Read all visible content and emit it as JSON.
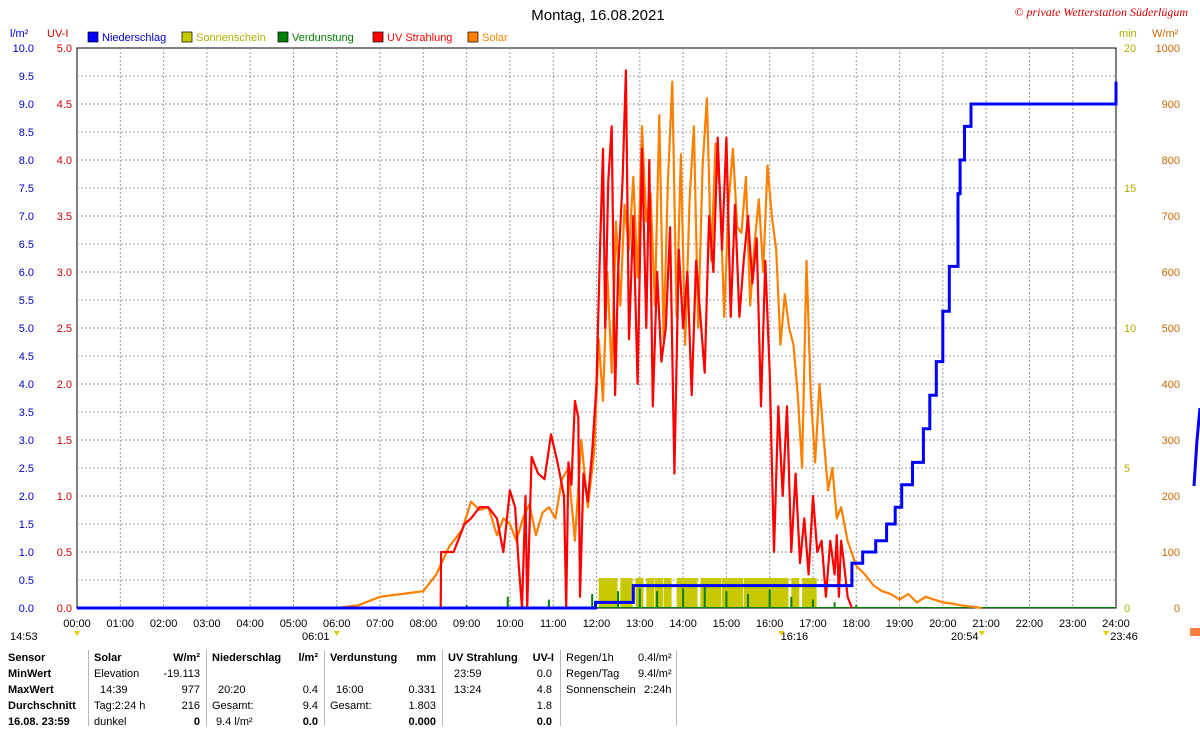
{
  "chart_data": {
    "type": "line",
    "title": "Montag, 16.08.2021",
    "copyright": "© private Wetterstation Süderlügum",
    "units": {
      "left_outer": "l/m²",
      "left_inner": "UV-I",
      "right_inner": "min",
      "right_outer": "W/m²"
    },
    "legend": [
      {
        "name": "Niederschlag",
        "color": "#0000ff"
      },
      {
        "name": "Sonnenschein",
        "color": "#c8c800"
      },
      {
        "name": "Verdunstung",
        "color": "#008000"
      },
      {
        "name": "UV Strahlung",
        "color": "#ff0000"
      },
      {
        "name": "Solar",
        "color": "#ff8000"
      }
    ],
    "x_ticks": [
      "00:00",
      "01:00",
      "02:00",
      "03:00",
      "04:00",
      "05:00",
      "06:00",
      "07:00",
      "08:00",
      "09:00",
      "10:00",
      "11:00",
      "12:00",
      "13:00",
      "14:00",
      "15:00",
      "16:00",
      "17:00",
      "18:00",
      "19:00",
      "20:00",
      "21:00",
      "22:00",
      "23:00",
      "24:00"
    ],
    "axes": {
      "precip_lm2": {
        "min": 0,
        "max": 10,
        "ticks": [
          "0.0",
          "0.5",
          "1.0",
          "1.5",
          "2.0",
          "2.5",
          "3.0",
          "3.5",
          "4.0",
          "4.5",
          "5.0",
          "5.5",
          "6.0",
          "6.5",
          "7.0",
          "7.5",
          "8.0",
          "8.5",
          "9.0",
          "9.5",
          "10.0"
        ]
      },
      "uv_index": {
        "min": 0,
        "max": 5,
        "ticks": [
          "0.0",
          "0.5",
          "1.0",
          "1.5",
          "2.0",
          "2.5",
          "3.0",
          "3.5",
          "4.0",
          "4.5",
          "5.0"
        ]
      },
      "sunshine_min": {
        "min": 0,
        "max": 20,
        "ticks": [
          "0",
          "5",
          "10",
          "15",
          "20"
        ]
      },
      "solar_wm2": {
        "min": 0,
        "max": 1000,
        "ticks": [
          "0",
          "100",
          "200",
          "300",
          "400",
          "500",
          "600",
          "700",
          "800",
          "900",
          "1000"
        ]
      }
    },
    "time_markers": [
      {
        "label": "14:53",
        "hour": 0
      },
      {
        "label": "06:01",
        "hour": 6.0
      },
      {
        "label": "16:16",
        "hour": 16.27
      },
      {
        "label": "20:54",
        "hour": 20.9
      },
      {
        "label": "23:46",
        "hour": 23.77
      }
    ],
    "series": [
      {
        "name": "Niederschlag",
        "unit": "l/m²",
        "color": "#0000ff",
        "kind": "step",
        "x": [
          0,
          11.75,
          11.98,
          12.85,
          16.2,
          16.9,
          17.65,
          17.9,
          18.15,
          18.45,
          18.7,
          18.9,
          19.05,
          19.3,
          19.55,
          19.7,
          19.85,
          20.0,
          20.15,
          20.35,
          20.4,
          20.5,
          20.65,
          24.0
        ],
        "y": [
          0.0,
          0.0,
          0.1,
          0.4,
          0.4,
          0.4,
          0.4,
          0.8,
          1.0,
          1.2,
          1.5,
          1.8,
          2.2,
          2.6,
          3.2,
          3.8,
          4.4,
          5.3,
          6.1,
          7.4,
          8.0,
          8.6,
          9.0,
          9.4
        ]
      },
      {
        "name": "UV Strahlung",
        "unit": "UV-I",
        "color": "#ff0000",
        "x": [
          8.4,
          8.41,
          8.7,
          8.95,
          9.1,
          9.3,
          9.5,
          9.7,
          9.85,
          10.0,
          10.12,
          10.2,
          10.28,
          10.36,
          10.4,
          10.5,
          10.65,
          10.8,
          10.95,
          11.1,
          11.25,
          11.3,
          11.35,
          11.42,
          11.5,
          11.58,
          11.62,
          11.7,
          11.8,
          11.9,
          12.0,
          12.08,
          12.15,
          12.2,
          12.27,
          12.35,
          12.43,
          12.5,
          12.6,
          12.68,
          12.75,
          12.85,
          12.95,
          13.05,
          13.15,
          13.22,
          13.3,
          13.4,
          13.5,
          13.6,
          13.7,
          13.8,
          13.9,
          14.0,
          14.1,
          14.2,
          14.3,
          14.4,
          14.5,
          14.6,
          14.7,
          14.8,
          14.9,
          15.0,
          15.1,
          15.2,
          15.3,
          15.4,
          15.5,
          15.6,
          15.7,
          15.8,
          15.9,
          16.0,
          16.1,
          16.2,
          16.3,
          16.4,
          16.5,
          16.6,
          16.7,
          16.8,
          16.9,
          17.0,
          17.1,
          17.2,
          17.3,
          17.4,
          17.5,
          17.55,
          17.6,
          17.65,
          17.7,
          17.8,
          17.9
        ],
        "y": [
          0,
          0.5,
          0.5,
          0.75,
          0.8,
          0.9,
          0.9,
          0.8,
          0.5,
          1.05,
          0.9,
          0.4,
          0.0,
          1.0,
          0.0,
          1.35,
          1.2,
          1.15,
          1.55,
          1.3,
          1.0,
          0.0,
          1.3,
          1.1,
          1.85,
          1.7,
          0.1,
          1.2,
          0.95,
          1.4,
          2.0,
          3.2,
          4.1,
          2.5,
          3.8,
          4.3,
          1.9,
          3.0,
          3.8,
          4.8,
          2.4,
          3.5,
          2.0,
          4.1,
          2.5,
          4.0,
          1.8,
          3.0,
          2.2,
          2.5,
          3.4,
          1.2,
          3.2,
          2.5,
          3.0,
          1.9,
          3.1,
          2.6,
          2.1,
          3.5,
          3.0,
          4.2,
          3.2,
          4.2,
          2.6,
          3.6,
          2.6,
          3.1,
          3.5,
          2.9,
          3.3,
          1.8,
          3.1,
          2.1,
          0.5,
          1.8,
          1.0,
          1.8,
          0.5,
          1.2,
          0.4,
          0.8,
          0.3,
          1.0,
          0.5,
          0.6,
          0.1,
          0.6,
          0.3,
          0.65,
          0.1,
          0.6,
          0.45,
          0.1,
          0.0
        ]
      },
      {
        "name": "Solar",
        "unit": "W/m²",
        "color": "#ff8000",
        "x": [
          6.0,
          6.5,
          7.0,
          7.5,
          8.0,
          8.3,
          8.6,
          8.9,
          9.1,
          9.3,
          9.5,
          9.7,
          9.85,
          10.0,
          10.15,
          10.3,
          10.45,
          10.6,
          10.75,
          10.9,
          11.05,
          11.2,
          11.35,
          11.5,
          11.65,
          11.8,
          11.95,
          12.05,
          12.15,
          12.25,
          12.35,
          12.45,
          12.55,
          12.65,
          12.75,
          12.85,
          12.95,
          13.05,
          13.15,
          13.25,
          13.35,
          13.45,
          13.55,
          13.65,
          13.75,
          13.85,
          13.95,
          14.05,
          14.15,
          14.25,
          14.35,
          14.45,
          14.55,
          14.65,
          14.75,
          14.85,
          14.95,
          15.05,
          15.15,
          15.25,
          15.35,
          15.45,
          15.55,
          15.65,
          15.75,
          15.85,
          15.95,
          16.05,
          16.15,
          16.25,
          16.35,
          16.45,
          16.55,
          16.65,
          16.75,
          16.85,
          16.95,
          17.05,
          17.15,
          17.25,
          17.35,
          17.45,
          17.55,
          17.65,
          17.8,
          18.0,
          18.2,
          18.4,
          18.6,
          18.8,
          19.0,
          19.2,
          19.4,
          19.6,
          19.8,
          20.0,
          20.2,
          20.4,
          20.6,
          20.9
        ],
        "y": [
          0,
          5,
          20,
          25,
          30,
          60,
          110,
          140,
          190,
          175,
          180,
          130,
          160,
          150,
          120,
          160,
          185,
          130,
          170,
          180,
          160,
          230,
          250,
          120,
          300,
          180,
          280,
          480,
          370,
          600,
          420,
          690,
          540,
          720,
          640,
          770,
          590,
          860,
          690,
          740,
          540,
          880,
          480,
          760,
          940,
          520,
          810,
          470,
          730,
          860,
          500,
          790,
          910,
          620,
          830,
          750,
          520,
          720,
          820,
          680,
          670,
          770,
          540,
          650,
          730,
          600,
          790,
          700,
          640,
          470,
          560,
          500,
          470,
          380,
          250,
          620,
          380,
          260,
          400,
          300,
          210,
          250,
          160,
          180,
          120,
          75,
          60,
          40,
          30,
          25,
          15,
          25,
          10,
          20,
          15,
          10,
          8,
          5,
          3,
          0
        ]
      },
      {
        "name": "Sonnenschein",
        "unit": "min",
        "color": "#c8c800",
        "kind": "bars",
        "x": [
          12.05,
          12.15,
          12.3,
          12.55,
          12.65,
          12.9,
          13.15,
          13.35,
          13.55,
          13.85,
          14.0,
          14.15,
          14.4,
          14.55,
          14.7,
          14.9,
          15.05,
          15.2,
          15.4,
          15.55,
          15.7,
          15.85,
          16.0,
          16.15,
          16.25,
          16.5,
          16.75,
          16.9
        ],
        "y": [
          1,
          1,
          1,
          1,
          1,
          1,
          1,
          1,
          1,
          1,
          1,
          1,
          1,
          1,
          1,
          1,
          1,
          1,
          1,
          1,
          1,
          1,
          1,
          1,
          1,
          1,
          1,
          1
        ]
      },
      {
        "name": "Verdunstung",
        "unit": "mm",
        "color": "#008000",
        "kind": "spikes",
        "x": [
          9.0,
          9.95,
          10.9,
          11.9,
          12.5,
          13.0,
          13.4,
          14.0,
          14.5,
          15.0,
          15.5,
          16.0,
          16.5,
          17.0,
          17.5,
          18.0
        ],
        "y": [
          0.05,
          0.2,
          0.15,
          0.25,
          0.3,
          0.35,
          0.3,
          0.35,
          0.4,
          0.3,
          0.25,
          0.33,
          0.2,
          0.15,
          0.1,
          0.05
        ]
      }
    ]
  },
  "stats": {
    "col_sensor": {
      "h": "Sensor",
      "r1": "MinWert",
      "r2": "MaxWert",
      "r3": "Durchschnitt",
      "r4": "16.08. 23:59"
    },
    "col_solar": {
      "h": "Solar",
      "unit": "W/m²",
      "r1_l": "Elevation",
      "r1_v": "-19.113",
      "r2_l": "14:39",
      "r2_v": "977",
      "r3_l": "Tag:2:24 h",
      "r3_v": "216",
      "r4_l": "dunkel",
      "r4_v": "0"
    },
    "col_precip": {
      "h": "Niederschlag",
      "unit": "l/m²",
      "r2_l": "20:20",
      "r2_v": "0.4",
      "r3_l": "Gesamt:",
      "r3_v": "9.4",
      "r4_l": "9.4 l/m²",
      "r4_v": "0.0"
    },
    "col_evap": {
      "h": "Verdunstung",
      "unit": "mm",
      "r2_l": "16:00",
      "r2_v": "0.331",
      "r3_l": "Gesamt:",
      "r3_v": "1.803",
      "r4_v": "0.000"
    },
    "col_uv": {
      "h": "UV Strahlung",
      "unit": "UV-I",
      "r1_l": "23:59",
      "r1_v": "0.0",
      "r2_l": "13:24",
      "r2_v": "4.8",
      "r3_v": "1.8",
      "r4_v": "0.0"
    },
    "col_rain": {
      "r1_l": "Regen/1h",
      "r1_v": "0.4l/m²",
      "r2_l": "Regen/Tag",
      "r2_v": "9.4l/m²",
      "r3_l": "Sonnenschein",
      "r3_v": "2:24h"
    }
  }
}
